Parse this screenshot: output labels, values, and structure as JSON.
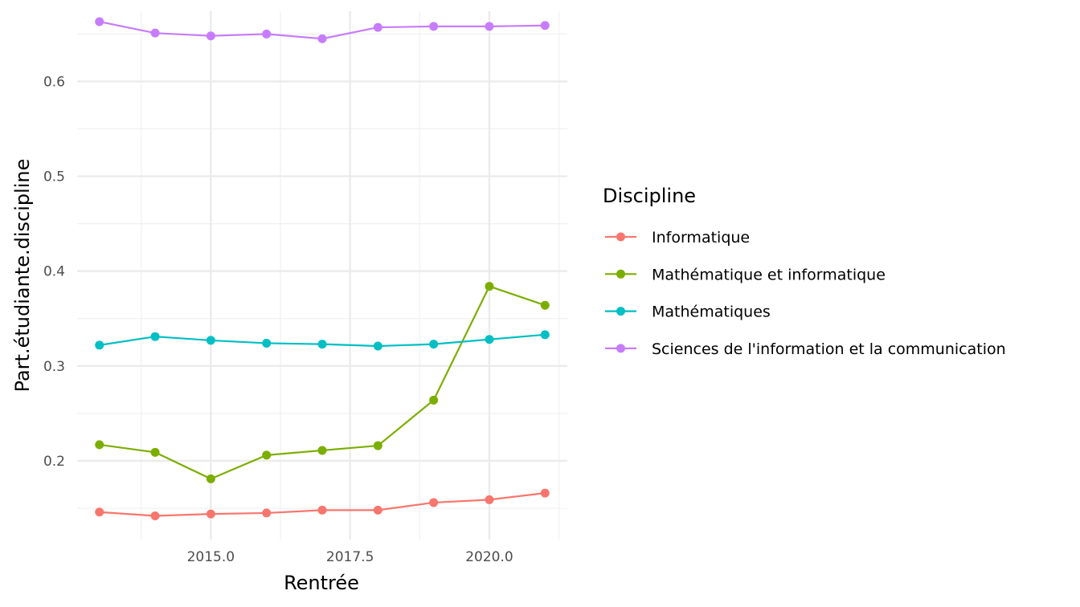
{
  "chart_data": {
    "type": "line",
    "xlabel": "Rentrée",
    "ylabel": "Part.étudiante.discipline",
    "xlim": [
      2012.6,
      2021.4
    ],
    "ylim": [
      0.117,
      0.674
    ],
    "x_ticks": [
      2015.0,
      2017.5,
      2020.0
    ],
    "x_tick_labels": [
      "2015.0",
      "2017.5",
      "2020.0"
    ],
    "y_ticks": [
      0.2,
      0.3,
      0.4,
      0.5,
      0.6
    ],
    "y_tick_labels": [
      "0.2",
      "0.3",
      "0.4",
      "0.5",
      "0.6"
    ],
    "grid": true,
    "legend": {
      "title": "Discipline",
      "position": "right"
    },
    "x": [
      2013,
      2014,
      2015,
      2016,
      2017,
      2018,
      2019,
      2020,
      2021
    ],
    "series": [
      {
        "name": "Informatique",
        "color": "#F8766D",
        "values": [
          0.146,
          0.142,
          0.144,
          0.145,
          0.148,
          0.148,
          0.156,
          0.159,
          0.166
        ]
      },
      {
        "name": "Mathématique et informatique",
        "color": "#7CAE00",
        "values": [
          0.217,
          0.209,
          0.181,
          0.206,
          0.211,
          0.216,
          0.264,
          0.384,
          0.364
        ]
      },
      {
        "name": "Mathématiques",
        "color": "#00BFC4",
        "values": [
          0.322,
          0.331,
          0.327,
          0.324,
          0.323,
          0.321,
          0.323,
          0.328,
          0.333
        ]
      },
      {
        "name": "Sciences de l'information et la communication",
        "color": "#C77CFF",
        "values": [
          0.663,
          0.651,
          0.648,
          0.65,
          0.645,
          0.657,
          0.658,
          0.658,
          0.659
        ]
      }
    ]
  }
}
